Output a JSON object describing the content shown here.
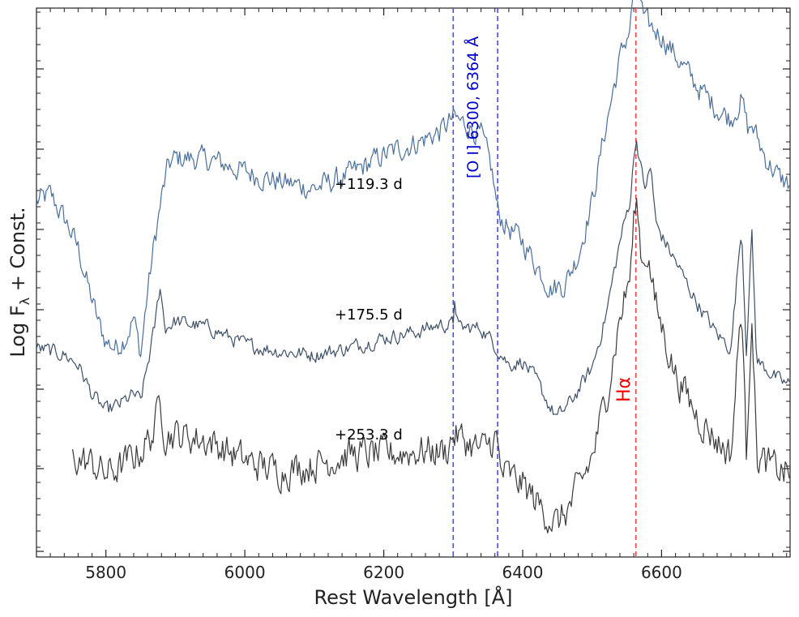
{
  "chart_data": {
    "type": "line",
    "xlabel": "Rest Wavelength [Å]",
    "ylabel_main": "Log F",
    "ylabel_sub": "λ",
    "ylabel_tail": " + Const.",
    "xlim": [
      5700,
      6785
    ],
    "xticks": [
      5800,
      6000,
      6200,
      6400,
      6600
    ],
    "reference_lines": [
      {
        "wavelength": 6300,
        "color": "#4a4aee"
      },
      {
        "wavelength": 6364,
        "color": "#4a4aee"
      },
      {
        "wavelength": 6563,
        "color": "#ee4444"
      }
    ],
    "line_labels": {
      "oi": "[O I] 6300, 6364 Å",
      "halpha": "Hα"
    },
    "series": [
      {
        "name": "+119.3 d",
        "color": "#4a6e9a",
        "noise": 0.035,
        "points": [
          [
            5700,
            0.32
          ],
          [
            5720,
            0.34
          ],
          [
            5745,
            0.25
          ],
          [
            5760,
            0.18
          ],
          [
            5775,
            0.06
          ],
          [
            5790,
            -0.05
          ],
          [
            5800,
            -0.1
          ],
          [
            5815,
            -0.12
          ],
          [
            5830,
            -0.08
          ],
          [
            5840,
            -0.03
          ],
          [
            5850,
            -0.14
          ],
          [
            5860,
            0.05
          ],
          [
            5870,
            0.2
          ],
          [
            5880,
            0.33
          ],
          [
            5890,
            0.43
          ],
          [
            5900,
            0.45
          ],
          [
            5930,
            0.45
          ],
          [
            5960,
            0.44
          ],
          [
            6000,
            0.41
          ],
          [
            6050,
            0.38
          ],
          [
            6100,
            0.36
          ],
          [
            6150,
            0.4
          ],
          [
            6200,
            0.46
          ],
          [
            6250,
            0.5
          ],
          [
            6280,
            0.53
          ],
          [
            6300,
            0.57
          ],
          [
            6320,
            0.55
          ],
          [
            6340,
            0.52
          ],
          [
            6355,
            0.42
          ],
          [
            6365,
            0.28
          ],
          [
            6380,
            0.24
          ],
          [
            6400,
            0.2
          ],
          [
            6420,
            0.13
          ],
          [
            6440,
            0.06
          ],
          [
            6460,
            0.07
          ],
          [
            6480,
            0.16
          ],
          [
            6500,
            0.32
          ],
          [
            6520,
            0.55
          ],
          [
            6540,
            0.75
          ],
          [
            6555,
            0.85
          ],
          [
            6563,
            1.03
          ],
          [
            6575,
            0.86
          ],
          [
            6600,
            0.82
          ],
          [
            6620,
            0.76
          ],
          [
            6650,
            0.67
          ],
          [
            6680,
            0.6
          ],
          [
            6700,
            0.57
          ],
          [
            6715,
            0.63
          ],
          [
            6725,
            0.53
          ],
          [
            6730,
            0.55
          ],
          [
            6750,
            0.45
          ],
          [
            6770,
            0.39
          ],
          [
            6785,
            0.37
          ]
        ]
      },
      {
        "name": "+175.5 d",
        "color": "#3d4f66",
        "noise": 0.022,
        "points": [
          [
            5700,
            -0.12
          ],
          [
            5720,
            -0.13
          ],
          [
            5740,
            -0.14
          ],
          [
            5760,
            -0.17
          ],
          [
            5780,
            -0.26
          ],
          [
            5800,
            -0.31
          ],
          [
            5820,
            -0.29
          ],
          [
            5840,
            -0.26
          ],
          [
            5850,
            -0.28
          ],
          [
            5860,
            -0.17
          ],
          [
            5870,
            -0.06
          ],
          [
            5878,
            0.07
          ],
          [
            5885,
            -0.06
          ],
          [
            5900,
            -0.04
          ],
          [
            5950,
            -0.06
          ],
          [
            6000,
            -0.11
          ],
          [
            6050,
            -0.13
          ],
          [
            6100,
            -0.14
          ],
          [
            6150,
            -0.12
          ],
          [
            6200,
            -0.09
          ],
          [
            6250,
            -0.07
          ],
          [
            6280,
            -0.05
          ],
          [
            6300,
            -0.05
          ],
          [
            6302,
            0.03
          ],
          [
            6308,
            -0.06
          ],
          [
            6340,
            -0.06
          ],
          [
            6360,
            -0.11
          ],
          [
            6380,
            -0.17
          ],
          [
            6400,
            -0.16
          ],
          [
            6420,
            -0.22
          ],
          [
            6440,
            -0.3
          ],
          [
            6450,
            -0.33
          ],
          [
            6470,
            -0.28
          ],
          [
            6500,
            -0.18
          ],
          [
            6520,
            -0.02
          ],
          [
            6540,
            0.2
          ],
          [
            6555,
            0.33
          ],
          [
            6563,
            0.52
          ],
          [
            6575,
            0.36
          ],
          [
            6585,
            0.42
          ],
          [
            6592,
            0.25
          ],
          [
            6620,
            0.14
          ],
          [
            6650,
            0.02
          ],
          [
            6680,
            -0.08
          ],
          [
            6700,
            -0.12
          ],
          [
            6715,
            0.25
          ],
          [
            6722,
            -0.12
          ],
          [
            6730,
            0.22
          ],
          [
            6737,
            -0.16
          ],
          [
            6750,
            -0.18
          ],
          [
            6770,
            -0.22
          ],
          [
            6785,
            -0.23
          ]
        ]
      },
      {
        "name": "+253.3 d",
        "color": "#3a3a3a",
        "noise": 0.05,
        "points": [
          [
            5752,
            -0.45
          ],
          [
            5780,
            -0.47
          ],
          [
            5800,
            -0.5
          ],
          [
            5820,
            -0.48
          ],
          [
            5850,
            -0.43
          ],
          [
            5870,
            -0.37
          ],
          [
            5878,
            -0.26
          ],
          [
            5885,
            -0.38
          ],
          [
            5900,
            -0.38
          ],
          [
            5950,
            -0.4
          ],
          [
            6000,
            -0.46
          ],
          [
            6050,
            -0.49
          ],
          [
            6100,
            -0.47
          ],
          [
            6150,
            -0.44
          ],
          [
            6200,
            -0.44
          ],
          [
            6250,
            -0.43
          ],
          [
            6290,
            -0.43
          ],
          [
            6300,
            -0.38
          ],
          [
            6310,
            -0.39
          ],
          [
            6340,
            -0.43
          ],
          [
            6362,
            -0.39
          ],
          [
            6368,
            -0.49
          ],
          [
            6400,
            -0.53
          ],
          [
            6430,
            -0.61
          ],
          [
            6450,
            -0.65
          ],
          [
            6470,
            -0.59
          ],
          [
            6500,
            -0.45
          ],
          [
            6520,
            -0.27
          ],
          [
            6540,
            -0.03
          ],
          [
            6555,
            0.1
          ],
          [
            6563,
            0.34
          ],
          [
            6572,
            0.14
          ],
          [
            6580,
            0.17
          ],
          [
            6590,
            0.02
          ],
          [
            6620,
            -0.2
          ],
          [
            6650,
            -0.32
          ],
          [
            6680,
            -0.4
          ],
          [
            6700,
            -0.44
          ],
          [
            6715,
            0.02
          ],
          [
            6722,
            -0.44
          ],
          [
            6730,
            0.01
          ],
          [
            6737,
            -0.45
          ],
          [
            6760,
            -0.48
          ],
          [
            6785,
            -0.5
          ]
        ]
      }
    ],
    "epoch_labels": [
      "+119.3 d",
      "+175.5 d",
      "+253.3 d"
    ]
  }
}
